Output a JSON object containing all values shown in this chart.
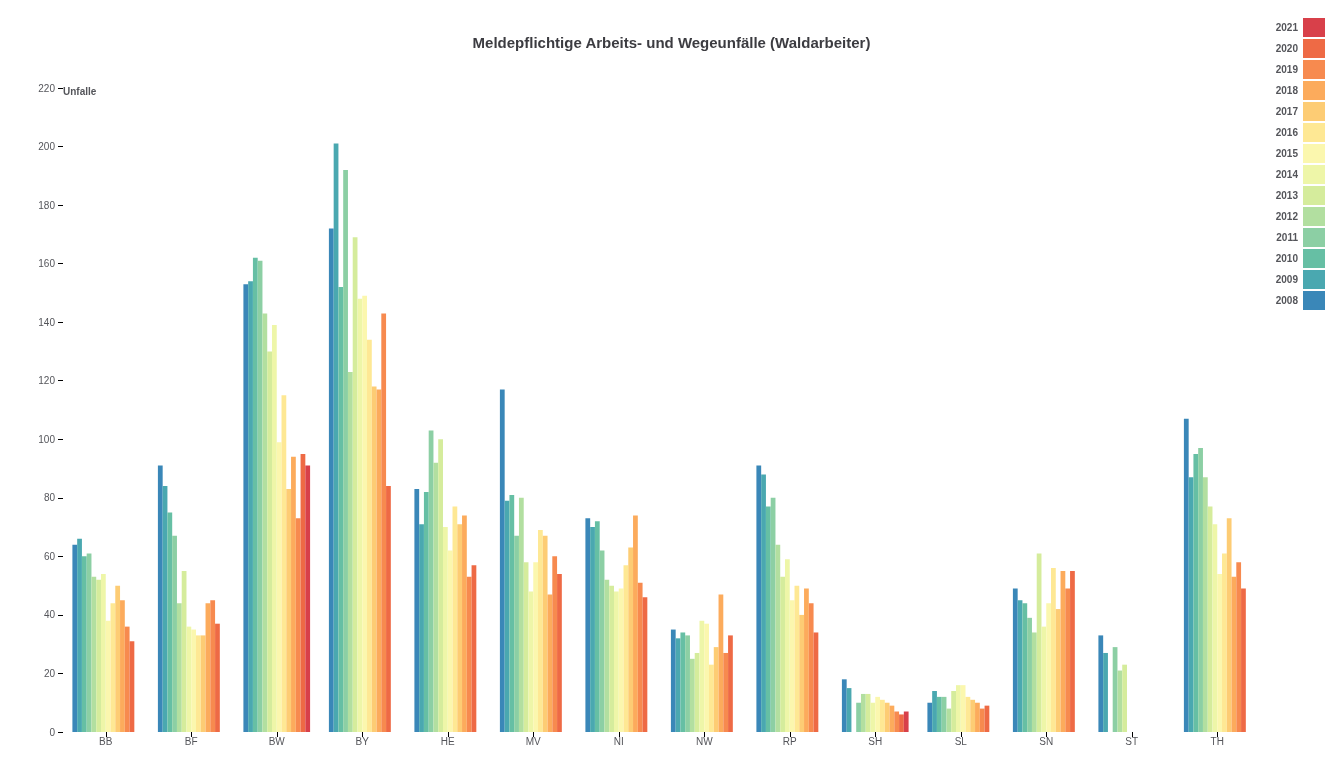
{
  "chart_data": {
    "type": "bar",
    "title": "Meldepflichtige Arbeits- und Wegeunfälle (Waldarbeiter)",
    "ylabel": "Unfalle",
    "categories": [
      "BB",
      "BF",
      "BW",
      "BY",
      "HE",
      "MV",
      "NI",
      "NW",
      "RP",
      "SH",
      "SL",
      "SN",
      "ST",
      "TH"
    ],
    "ylim": [
      0,
      220
    ],
    "yticks": [
      0,
      20,
      40,
      60,
      80,
      100,
      120,
      140,
      160,
      180,
      200,
      220
    ],
    "grid": false,
    "legend": "top right",
    "series": [
      {
        "name": "2008",
        "color": "#3a87b8",
        "values": [
          64,
          91,
          153,
          172,
          83,
          117,
          73,
          35,
          91,
          18,
          10,
          49,
          33,
          107
        ]
      },
      {
        "name": "2009",
        "color": "#4aa8b0",
        "values": [
          66,
          84,
          154,
          201,
          71,
          79,
          70,
          32,
          88,
          15,
          14,
          45,
          27,
          87
        ]
      },
      {
        "name": "2010",
        "color": "#66bfa4",
        "values": [
          60,
          75,
          162,
          152,
          82,
          81,
          72,
          34,
          77,
          null,
          12,
          44,
          null,
          95
        ]
      },
      {
        "name": "2011",
        "color": "#8ccfa4",
        "values": [
          61,
          67,
          161,
          192,
          103,
          67,
          62,
          33,
          80,
          10,
          12,
          39,
          29,
          97
        ]
      },
      {
        "name": "2012",
        "color": "#b2dfa0",
        "values": [
          53,
          44,
          143,
          123,
          92,
          80,
          52,
          25,
          64,
          13,
          8,
          34,
          21,
          87
        ]
      },
      {
        "name": "2013",
        "color": "#d5ec9c",
        "values": [
          52,
          55,
          130,
          169,
          100,
          58,
          50,
          27,
          53,
          13,
          14,
          61,
          23,
          77
        ]
      },
      {
        "name": "2014",
        "color": "#eef6a8",
        "values": [
          54,
          36,
          139,
          148,
          70,
          48,
          48,
          38,
          59,
          10,
          16,
          36,
          null,
          71
        ]
      },
      {
        "name": "2015",
        "color": "#fbf7ae",
        "values": [
          38,
          35,
          99,
          149,
          62,
          58,
          49,
          37,
          45,
          12,
          16,
          44,
          null,
          54
        ]
      },
      {
        "name": "2016",
        "color": "#fee894",
        "values": [
          44,
          33,
          115,
          134,
          77,
          69,
          57,
          23,
          50,
          11,
          12,
          56,
          null,
          61
        ]
      },
      {
        "name": "2017",
        "color": "#fdcc74",
        "values": [
          50,
          33,
          83,
          118,
          71,
          67,
          63,
          29,
          40,
          10,
          11,
          42,
          null,
          73
        ]
      },
      {
        "name": "2018",
        "color": "#fcab5c",
        "values": [
          45,
          44,
          94,
          117,
          74,
          47,
          74,
          47,
          49,
          9,
          10,
          55,
          null,
          53
        ]
      },
      {
        "name": "2019",
        "color": "#f78a4f",
        "values": [
          36,
          45,
          73,
          143,
          53,
          60,
          51,
          27,
          44,
          7,
          8,
          49,
          null,
          58
        ]
      },
      {
        "name": "2020",
        "color": "#ee6a45",
        "values": [
          31,
          37,
          95,
          84,
          57,
          54,
          46,
          33,
          34,
          6,
          9,
          55,
          null,
          49
        ]
      },
      {
        "name": "2021",
        "color": "#d8404a",
        "values": [
          null,
          null,
          91,
          null,
          null,
          null,
          null,
          null,
          null,
          7,
          null,
          null,
          null,
          null
        ]
      }
    ]
  }
}
